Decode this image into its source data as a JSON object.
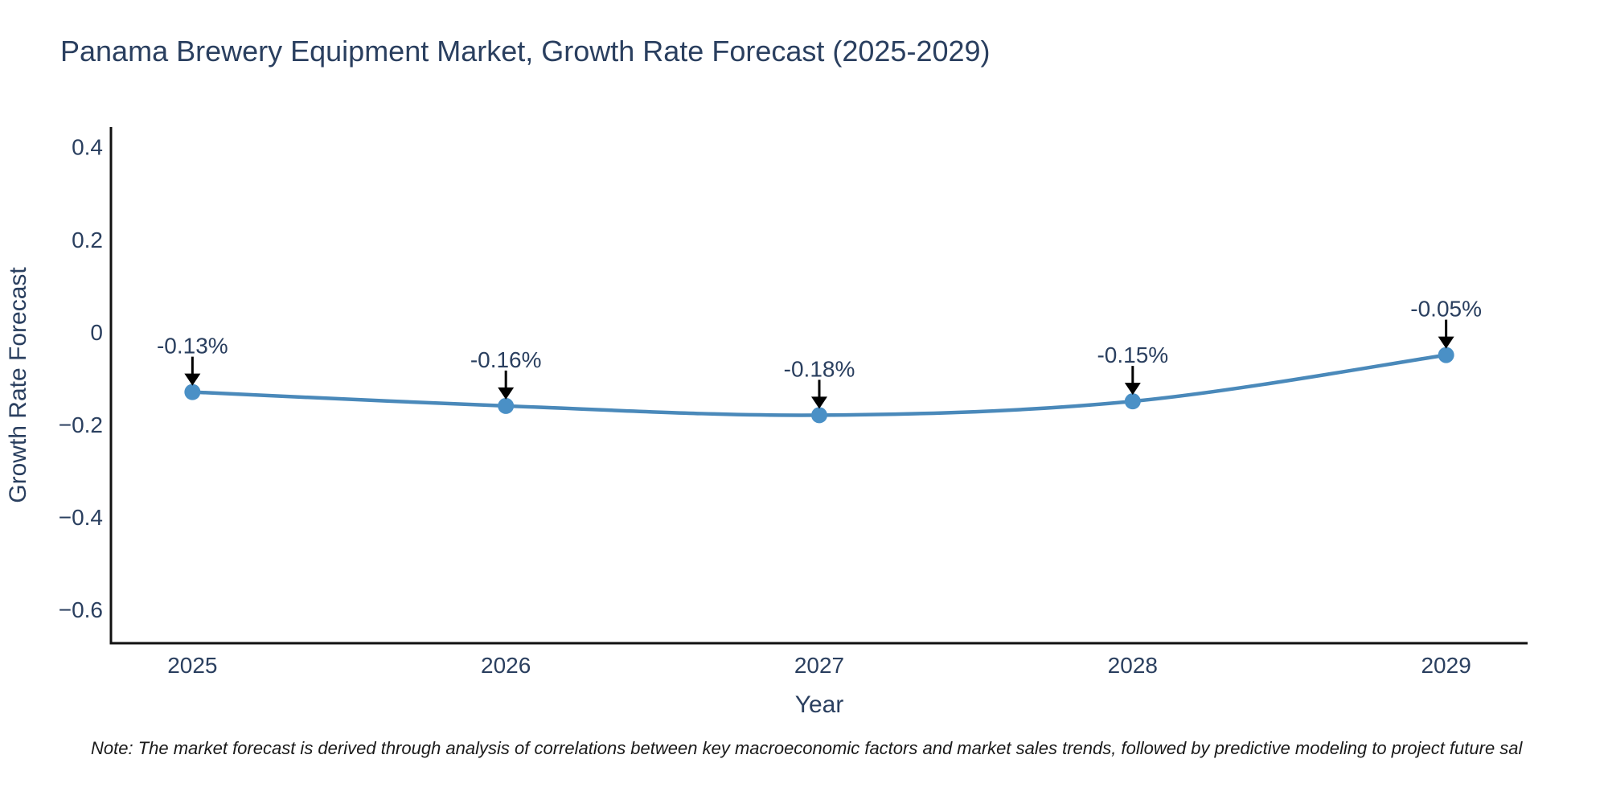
{
  "title": "Panama Brewery Equipment Market, Growth Rate Forecast (2025-2029)",
  "note": "Note: The market forecast is derived through analysis of correlations between key macroeconomic factors and market sales trends, followed by predictive modeling to project future sal",
  "chart_data": {
    "type": "line",
    "title": "Panama Brewery Equipment Market, Growth Rate Forecast (2025-2029)",
    "xlabel": "Year",
    "ylabel": "Growth Rate Forecast",
    "x": [
      2025,
      2026,
      2027,
      2028,
      2029
    ],
    "series": [
      {
        "name": "Growth Rate Forecast",
        "values": [
          -0.13,
          -0.16,
          -0.18,
          -0.15,
          -0.05
        ]
      }
    ],
    "point_labels": [
      "-0.13%",
      "-0.16%",
      "-0.18%",
      "-0.15%",
      "-0.05%"
    ],
    "x_tick_labels": [
      "2025",
      "2026",
      "2027",
      "2028",
      "2029"
    ],
    "y_tick_labels": [
      "0.4",
      "0.2",
      "0",
      "−0.2",
      "−0.4",
      "−0.6"
    ],
    "y_tick_values": [
      0.4,
      0.2,
      0,
      -0.2,
      -0.4,
      -0.6
    ],
    "xlim": [
      2024.74,
      2029.26
    ],
    "ylim": [
      -0.673,
      0.443
    ],
    "grid": false,
    "legend": null,
    "line_shape": "spline",
    "marker": "circle",
    "colors": {
      "line": "#4a89ba",
      "marker": "#4a90c6",
      "arrow": "#000000",
      "text": "#2a3f5f",
      "spine": "#111111",
      "note": "#1a1a1a"
    }
  }
}
